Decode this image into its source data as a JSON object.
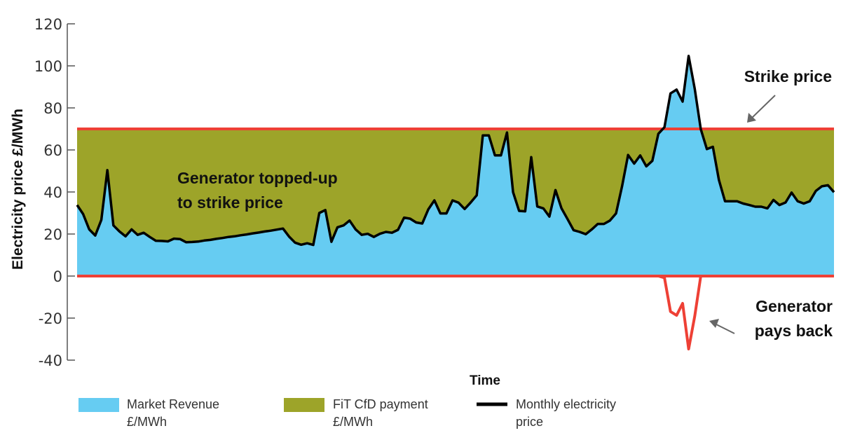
{
  "chart_data": {
    "type": "area",
    "xlabel": "Time",
    "ylabel": "Electricity price £/MWh",
    "ylim": [
      -40,
      120
    ],
    "yticks": [
      -40,
      -20,
      0,
      20,
      40,
      60,
      80,
      100,
      120
    ],
    "strike_price": 70,
    "series": [
      {
        "name": "Monthly electricity price",
        "color": "#000000",
        "values": [
          33.8,
          29.5,
          22.2,
          19.3,
          26.7,
          50.4,
          24.1,
          21.2,
          18.9,
          22.2,
          19.6,
          20.6,
          18.6,
          16.8,
          16.7,
          16.5,
          17.8,
          17.6,
          16.1,
          16.2,
          16.4,
          16.9,
          17.2,
          17.7,
          18.1,
          18.6,
          18.9,
          19.4,
          19.8,
          20.3,
          20.7,
          21.2,
          21.6,
          22.1,
          22.6,
          18.8,
          15.9,
          14.9,
          15.6,
          14.8,
          30.0,
          31.4,
          16.3,
          23.2,
          24.1,
          26.4,
          22.2,
          19.6,
          20.1,
          18.6,
          20.1,
          21.0,
          20.6,
          22.0,
          27.8,
          27.3,
          25.5,
          25.0,
          31.7,
          36.0,
          29.8,
          29.8,
          36.0,
          34.9,
          31.9,
          35.0,
          38.4,
          66.9,
          66.9,
          57.4,
          57.4,
          68.3,
          39.9,
          31.0,
          30.8,
          56.6,
          33.1,
          32.2,
          28.3,
          40.9,
          32.2,
          27.1,
          21.8,
          21.0,
          19.9,
          22.2,
          24.8,
          24.8,
          26.4,
          29.8,
          42.7,
          57.6,
          53.5,
          57.4,
          52.2,
          54.8,
          67.7,
          70.8,
          86.9,
          88.7,
          83.0,
          104.7,
          89.1,
          69.9,
          60.4,
          61.5,
          45.7,
          35.6,
          35.6,
          35.6,
          34.5,
          33.8,
          33.0,
          33.0,
          32.2,
          36.2,
          33.8,
          35.0,
          39.7,
          35.6,
          34.5,
          35.6,
          40.5,
          42.7,
          43.2,
          39.9
        ]
      },
      {
        "name": "Market Revenue £/MWh",
        "color": "#66CCF2"
      },
      {
        "name": "FiT CfD payment £/MWh",
        "color": "#9DA429"
      }
    ],
    "annotations": {
      "topped_up": [
        "Generator topped-up",
        "to strike price"
      ],
      "strike": "Strike price",
      "pays_back": [
        "Generator",
        "pays back"
      ]
    },
    "legend": [
      {
        "key": "market",
        "lines": [
          "Market Revenue",
          "£/MWh"
        ],
        "color": "#66CCF2",
        "kind": "swatch"
      },
      {
        "key": "fit",
        "lines": [
          "FiT CfD payment",
          "£/MWh"
        ],
        "color": "#9DA429",
        "kind": "swatch"
      },
      {
        "key": "price",
        "lines": [
          "Monthly electricity",
          "price"
        ],
        "color": "#000000",
        "kind": "line"
      }
    ],
    "strike_color": "#EE4035",
    "grid": false,
    "legend_position": "bottom"
  }
}
